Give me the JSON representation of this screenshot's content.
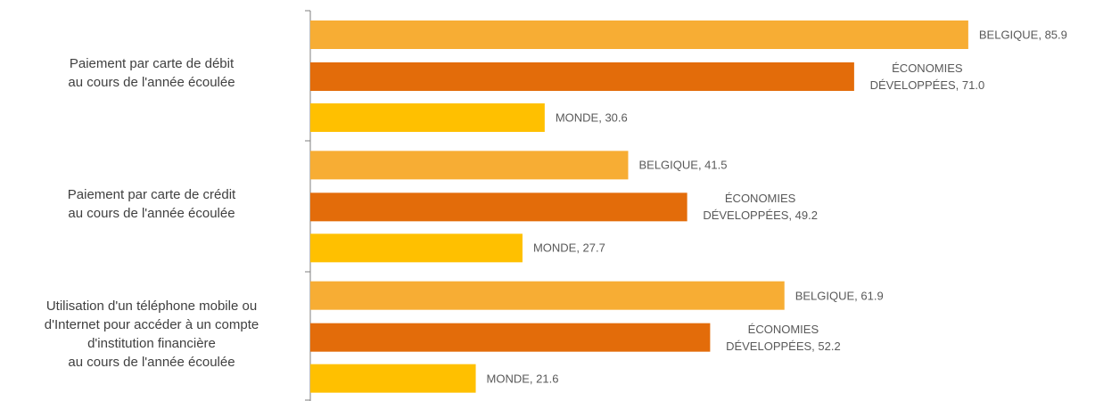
{
  "chart_data": {
    "type": "hbar",
    "categories": [
      "Paiement par carte de débit\nau cours de l'année écoulée",
      "Paiement par carte de crédit\nau cours de l'année écoulée",
      "Utilisation d'un téléphone mobile ou\nd'Internet pour accéder à un compte\nd'institution financière\nau cours de l'année écoulée"
    ],
    "series": [
      {
        "color": "#F7AD34",
        "values": [
          85.9,
          41.5,
          61.9
        ],
        "value_labels": [
          "BELGIQUE, 85.9",
          "BELGIQUE, 41.5",
          "BELGIQUE, 61.9"
        ]
      },
      {
        "color": "#E36C0A",
        "values": [
          71.0,
          49.2,
          52.2
        ],
        "value_labels": [
          "ÉCONOMIES DÉVELOPPÉES, 71.0",
          "ÉCONOMIES DÉVELOPPÉES, 49.2",
          "ÉCONOMIES DÉVELOPPÉES, 52.2"
        ]
      },
      {
        "color": "#FFC000",
        "values": [
          30.6,
          27.7,
          21.6
        ],
        "value_labels": [
          "MONDE, 30.6",
          "MONDE, 27.7",
          "MONDE, 21.6"
        ]
      }
    ],
    "xlim": [
      0,
      100
    ]
  }
}
